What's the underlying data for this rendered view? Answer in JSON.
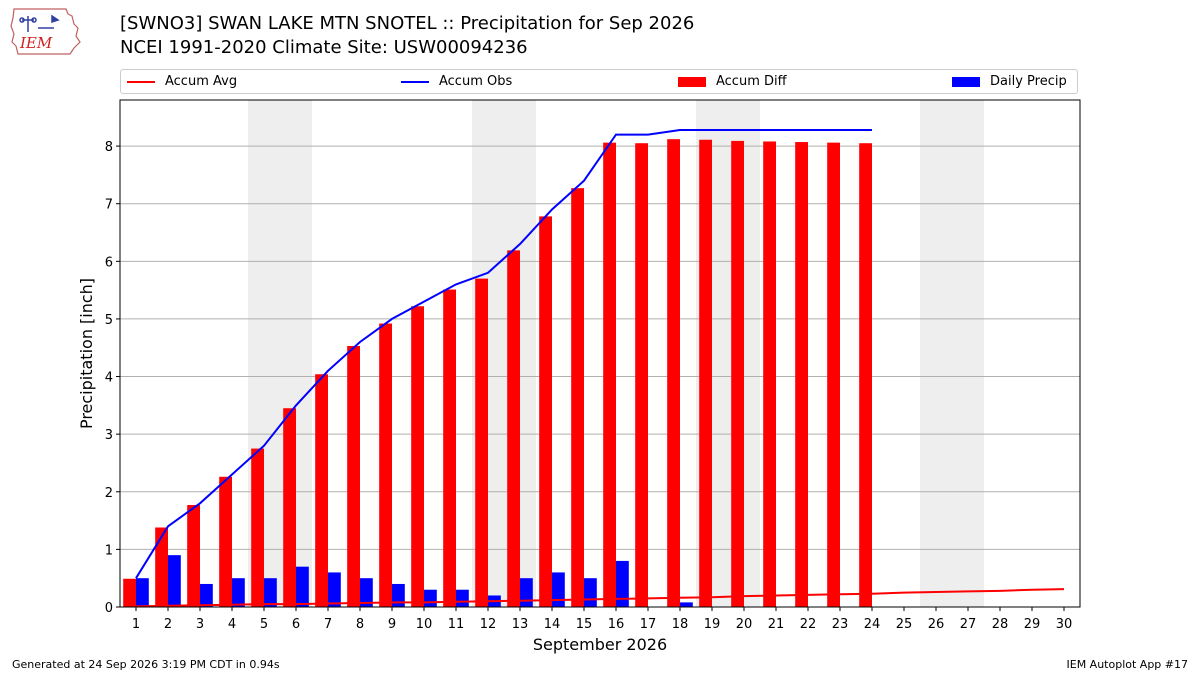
{
  "logo": {
    "text": "IEM"
  },
  "header": {
    "title_line1": "[SWNO3] SWAN LAKE MTN SNOTEL :: Precipitation for Sep 2026",
    "title_line2": "NCEI 1991-2020 Climate Site: USW00094236"
  },
  "legend": {
    "items": [
      {
        "label": "Accum Avg",
        "color": "#ff0000",
        "kind": "line"
      },
      {
        "label": "Accum Obs",
        "color": "#0000ff",
        "kind": "line"
      },
      {
        "label": "Accum Diff",
        "color": "#ff0000",
        "kind": "bar"
      },
      {
        "label": "Daily Precip",
        "color": "#0000ff",
        "kind": "bar"
      }
    ]
  },
  "footer": {
    "left": "Generated at 24 Sep 2026 3:19 PM CDT in 0.94s",
    "right": "IEM Autoplot App #17"
  },
  "chart_data": {
    "type": "bar",
    "title": "[SWNO3] SWAN LAKE MTN SNOTEL :: Precipitation for Sep 2026",
    "xlabel": "September 2026",
    "ylabel": "Precipitation [inch]",
    "ylim": [
      0,
      8.8
    ],
    "yticks": [
      0,
      1,
      2,
      3,
      4,
      5,
      6,
      7,
      8
    ],
    "grid": true,
    "legend_position": "top",
    "days": [
      1,
      2,
      3,
      4,
      5,
      6,
      7,
      8,
      9,
      10,
      11,
      12,
      13,
      14,
      15,
      16,
      17,
      18,
      19,
      20,
      21,
      22,
      23,
      24,
      25,
      26,
      27,
      28,
      29,
      30
    ],
    "weekend_days": [
      5,
      6,
      12,
      13,
      19,
      20,
      26,
      27
    ],
    "series": [
      {
        "name": "Accum Avg",
        "kind": "line",
        "color": "#ff0000",
        "values": [
          0.01,
          0.02,
          0.03,
          0.04,
          0.05,
          0.05,
          0.06,
          0.07,
          0.08,
          0.08,
          0.09,
          0.1,
          0.11,
          0.12,
          0.13,
          0.14,
          0.15,
          0.16,
          0.17,
          0.19,
          0.2,
          0.21,
          0.22,
          0.23,
          0.25,
          0.26,
          0.27,
          0.28,
          0.3,
          0.31
        ]
      },
      {
        "name": "Accum Obs",
        "kind": "line",
        "color": "#0000ff",
        "values": [
          0.5,
          1.4,
          1.8,
          2.3,
          2.8,
          3.5,
          4.1,
          4.6,
          5.0,
          5.3,
          5.6,
          5.8,
          6.3,
          6.9,
          7.4,
          8.2,
          8.2,
          8.28,
          8.28,
          8.28,
          8.28,
          8.28,
          8.28,
          8.28
        ]
      },
      {
        "name": "Accum Diff",
        "kind": "bar",
        "color": "#ff0000",
        "values": [
          0.49,
          1.38,
          1.77,
          2.26,
          2.75,
          3.45,
          4.04,
          4.53,
          4.92,
          5.22,
          5.51,
          5.7,
          6.19,
          6.78,
          7.27,
          8.06,
          8.05,
          8.12,
          8.11,
          8.09,
          8.08,
          8.07,
          8.06,
          8.05
        ]
      },
      {
        "name": "Daily Precip",
        "kind": "bar",
        "color": "#0000ff",
        "values": [
          0.5,
          0.9,
          0.4,
          0.5,
          0.5,
          0.7,
          0.6,
          0.5,
          0.4,
          0.3,
          0.3,
          0.2,
          0.5,
          0.6,
          0.5,
          0.8,
          0.0,
          0.08,
          0.0,
          0.0,
          0.0,
          0.0,
          0.0,
          0.0
        ]
      }
    ]
  }
}
